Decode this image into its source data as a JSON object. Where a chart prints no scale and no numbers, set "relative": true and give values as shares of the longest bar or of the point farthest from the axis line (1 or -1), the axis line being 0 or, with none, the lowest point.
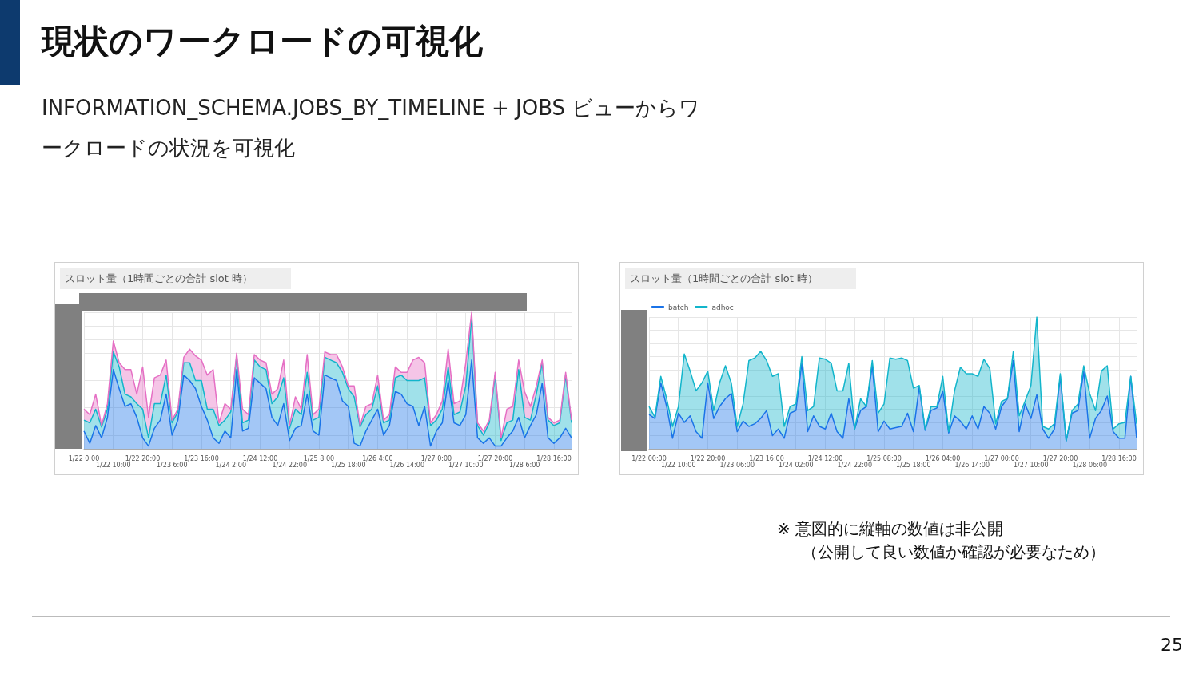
{
  "chart_data": [
    {
      "type": "other",
      "title": "現状のワークロードの可視化",
      "subtitle": "INFORMATION_SCHEMA.JOBS_BY_TIMELINE + JOBS ビューからワークロードの状況を可視化",
      "annotations": [
        "※ 意図的に縦軸の数値は非公開",
        "（公開して良い数値か確認が必要なため）",
        "25"
      ]
    },
    {
      "type": "area",
      "title": "スロット量（1時間ごとの合計 slot 時）",
      "stacked": true,
      "relative": true,
      "grid": true,
      "legend": false,
      "tick_labels": "x",
      "categories": [
        "1/22 0:00",
        null,
        null,
        null,
        null,
        "1/22 10:00",
        null,
        null,
        null,
        null,
        "1/22 20:00",
        null,
        null,
        null,
        null,
        "1/23 6:00",
        null,
        null,
        null,
        null,
        "1/23 16:00",
        null,
        null,
        null,
        null,
        "1/24 2:00",
        null,
        null,
        null,
        null,
        "1/24 12:00",
        null,
        null,
        null,
        null,
        "1/24 22:00",
        null,
        null,
        null,
        null,
        "1/25 8:00",
        null,
        null,
        null,
        null,
        "1/25 18:00",
        null,
        null,
        null,
        null,
        "1/26 4:00",
        null,
        null,
        null,
        null,
        "1/26 14:00",
        null,
        null,
        null,
        null,
        "1/27 0:00",
        null,
        null,
        null,
        null,
        "1/27 10:00",
        null,
        null,
        null,
        null,
        "1/27 20:00",
        null,
        null,
        null,
        null,
        "1/28 6:00",
        null,
        null,
        null,
        null,
        "1/28 16:00",
        null,
        null,
        null
      ],
      "series": [
        {
          "color": "#1a73e8",
          "values": [
            0.13,
            0.04,
            0.17,
            0.08,
            0.23,
            0.58,
            0.44,
            0.31,
            0.33,
            0.23,
            0.08,
            0.02,
            0.15,
            0.21,
            0.4,
            0.1,
            0.21,
            0.54,
            0.5,
            0.44,
            0.31,
            0.21,
            0.08,
            0.04,
            0.13,
            0.08,
            0.58,
            0.13,
            0.15,
            0.52,
            0.48,
            0.44,
            0.23,
            0.17,
            0.33,
            0.06,
            0.15,
            0.17,
            0.4,
            0.13,
            0.1,
            0.54,
            0.52,
            0.5,
            0.35,
            0.31,
            0.04,
            0.02,
            0.13,
            0.21,
            0.29,
            0.1,
            0.17,
            0.42,
            0.4,
            0.33,
            0.31,
            0.17,
            0.31,
            0.02,
            0.13,
            0.19,
            0.5,
            0.19,
            0.17,
            0.25,
            0.65,
            0.08,
            0.04,
            0.08,
            0.02,
            0.02,
            0.08,
            0.13,
            0.23,
            0.08,
            0.17,
            0.25,
            0.48,
            0.08,
            0.04,
            0.08,
            0.15,
            0.08
          ]
        },
        {
          "color": "#12b5cb",
          "values": [
            0.08,
            0.15,
            0.12,
            0.08,
            0.06,
            0.13,
            0.16,
            0.09,
            0.05,
            0.1,
            0.21,
            0.06,
            0.18,
            0.12,
            0.14,
            0.09,
            0.06,
            0.09,
            0.13,
            0.06,
            0.19,
            0.08,
            0.21,
            0.13,
            0.08,
            0.19,
            0.1,
            0.06,
            0.06,
            0.13,
            0.12,
            0.14,
            0.1,
            0.21,
            0.19,
            0.09,
            0.14,
            0.08,
            0.16,
            0.08,
            0.13,
            0.13,
            0.13,
            0.13,
            0.21,
            0.13,
            0.34,
            0.14,
            0.12,
            0.08,
            0.17,
            0.09,
            0.04,
            0.1,
            0.14,
            0.17,
            0.19,
            0.33,
            0.21,
            0.15,
            0.08,
            0.1,
            0.1,
            0.06,
            0.1,
            0.21,
            0.31,
            0.09,
            0.06,
            0.11,
            0.52,
            0.04,
            0.11,
            0.08,
            0.35,
            0.15,
            0.04,
            0.15,
            0.15,
            0.13,
            0.13,
            0.11,
            0.39,
            0.11
          ]
        },
        {
          "color": "#e56fc4",
          "values": [
            0.08,
            0.06,
            0.11,
            0.01,
            0.04,
            0.08,
            0.03,
            0.18,
            0.2,
            0.07,
            0.31,
            0.15,
            0.19,
            0.21,
            0.11,
            0.02,
            0.02,
            0.04,
            0.1,
            0.18,
            0.15,
            0.25,
            0.29,
            0.02,
            0.12,
            0.02,
            0.02,
            0.1,
            0.04,
            0.04,
            0.05,
            0.05,
            0.07,
            0.06,
            0.13,
            0.02,
            0.09,
            0.04,
            0.13,
            0.04,
            0.06,
            0.04,
            0.04,
            0.06,
            0.04,
            0.02,
            0.08,
            0.01,
            0.06,
            0.04,
            0.08,
            0.02,
            0.04,
            0.08,
            0.02,
            0.06,
            0.15,
            0.17,
            0.11,
            0.02,
            0.04,
            0.06,
            0.13,
            0.08,
            0.08,
            0.17,
            0.04,
            0.02,
            0.03,
            0.02,
            0.02,
            0.02,
            0.1,
            0.1,
            0.07,
            0.19,
            0.1,
            0.06,
            0.02,
            0.02,
            0.02,
            0.02,
            0.02,
            0.02
          ]
        }
      ]
    },
    {
      "type": "area",
      "title": "スロット量（1時間ごとの合計 slot 時）",
      "stacked": true,
      "relative": true,
      "grid": true,
      "legend": "top left",
      "tick_labels": "x",
      "categories": [
        "1/22 00:00",
        null,
        null,
        null,
        null,
        "1/22 10:00",
        null,
        null,
        null,
        null,
        "1/22 20:00",
        null,
        null,
        null,
        null,
        "1/23 06:00",
        null,
        null,
        null,
        null,
        "1/23 16:00",
        null,
        null,
        null,
        null,
        "1/24 02:00",
        null,
        null,
        null,
        null,
        "1/24 12:00",
        null,
        null,
        null,
        null,
        "1/24 22:00",
        null,
        null,
        null,
        null,
        "1/25 08:00",
        null,
        null,
        null,
        null,
        "1/25 18:00",
        null,
        null,
        null,
        null,
        "1/26 04:00",
        null,
        null,
        null,
        null,
        "1/26 14:00",
        null,
        null,
        null,
        null,
        "1/27 00:00",
        null,
        null,
        null,
        null,
        "1/27 10:00",
        null,
        null,
        null,
        null,
        "1/27 20:00",
        null,
        null,
        null,
        null,
        "1/28 06:00",
        null,
        null,
        null,
        null,
        "1/28 16:00",
        null,
        null,
        null
      ],
      "series": [
        {
          "name": "batch",
          "color": "#1a73e8",
          "values": [
            0.26,
            0.23,
            0.5,
            0.32,
            0.08,
            0.27,
            0.2,
            0.25,
            0.13,
            0.08,
            0.5,
            0.23,
            0.32,
            0.38,
            0.42,
            0.13,
            0.21,
            0.17,
            0.19,
            0.23,
            0.29,
            0.1,
            0.15,
            0.08,
            0.27,
            0.29,
            0.65,
            0.13,
            0.25,
            0.17,
            0.15,
            0.27,
            0.13,
            0.08,
            0.38,
            0.15,
            0.29,
            0.32,
            0.63,
            0.13,
            0.21,
            0.15,
            0.16,
            0.17,
            0.27,
            0.13,
            0.47,
            0.14,
            0.29,
            0.31,
            0.44,
            0.12,
            0.25,
            0.21,
            0.15,
            0.25,
            0.15,
            0.32,
            0.27,
            0.15,
            0.32,
            0.38,
            0.67,
            0.13,
            0.34,
            0.23,
            0.41,
            0.15,
            0.08,
            0.15,
            0.55,
            0.06,
            0.27,
            0.29,
            0.59,
            0.08,
            0.23,
            0.29,
            0.4,
            0.13,
            0.08,
            0.08,
            0.55,
            0.08
          ]
        },
        {
          "name": "adhoc",
          "color": "#12b5cb",
          "values": [
            0.06,
            0.01,
            0.05,
            0.06,
            0.09,
            0.05,
            0.52,
            0.34,
            0.31,
            0.42,
            0.09,
            0.06,
            0.18,
            0.25,
            0.08,
            0.04,
            0.13,
            0.5,
            0.5,
            0.51,
            0.38,
            0.45,
            0.42,
            0.09,
            0.05,
            0.05,
            0.05,
            0.16,
            0.07,
            0.52,
            0.53,
            0.38,
            0.31,
            0.36,
            0.27,
            0,
            0.09,
            0,
            0.04,
            0.14,
            0.13,
            0.54,
            0.52,
            0.52,
            0.4,
            0.33,
            0.01,
            0.01,
            0.03,
            0.01,
            0.11,
            0.01,
            0.19,
            0.41,
            0.42,
            0.32,
            0.4,
            0.36,
            0.34,
            0.04,
            0.04,
            0,
            0.07,
            0.12,
            0.02,
            0.25,
            0.59,
            0.02,
            0.07,
            0.04,
            0.02,
            0,
            0.02,
            0.05,
            0.04,
            0.34,
            0.06,
            0.3,
            0.23,
            0.02,
            0.11,
            0.12,
            0,
            0.11
          ]
        }
      ]
    }
  ]
}
